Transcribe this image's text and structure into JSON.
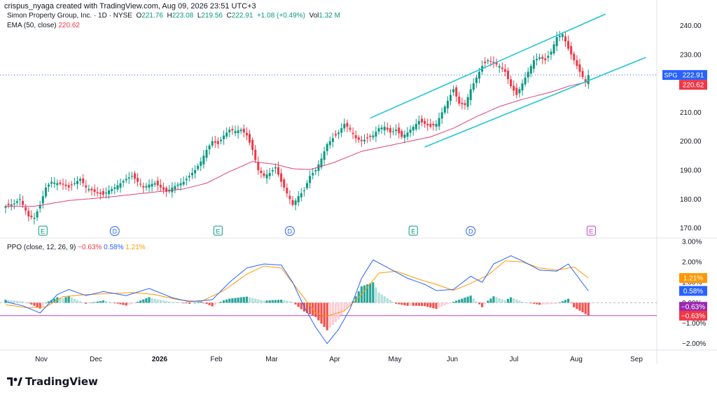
{
  "credit": "crispus_nyaga created with TradingView.com, Aug 09, 2026 23:51 UTC+3",
  "brand": "TradingView",
  "header": {
    "symbol_line": "Simon Property Group, Inc. · 1D · NYSE",
    "o_label": "O",
    "o_val": "221.76",
    "h_label": "H",
    "h_val": "223.08",
    "l_label": "L",
    "l_val": "219.56",
    "c_label": "C",
    "c_val": "222.91",
    "change": "+1.08 (+0.49%)",
    "vol_label": "Vol",
    "vol_val": "1.32 M",
    "ema_label": "EMA (50, close)",
    "ema_val": "220.62",
    "ppo_label": "PPO (close, 12, 26, 9)",
    "ppo_hist": "−0.63%",
    "ppo_line": "0.58%",
    "ppo_signal": "1.21%"
  },
  "colors": {
    "up": "#089981",
    "down": "#f23645",
    "ema": "#e0407a",
    "channel": "#1fc7d4",
    "ppo": "#2962ff",
    "signal": "#ff9800",
    "hist_up": "#26a69a",
    "hist_up_light": "#b2dfdb",
    "hist_down": "#ef5350",
    "hist_down_light": "#ffcdd2",
    "level": "#c040c0"
  },
  "chart_data": [
    {
      "type": "candlestick",
      "y_axis": {
        "ticks": [
          170,
          180,
          190,
          200,
          210,
          220,
          230,
          240
        ],
        "tick_labels": [
          "170.00",
          "180.00",
          "190.00",
          "200.00",
          "210.00",
          "220.00",
          "230.00",
          "240.00"
        ],
        "ylim": [
          167,
          244
        ]
      },
      "x_axis": {
        "labels": [
          "Nov",
          "Dec",
          "2026",
          "Feb",
          "Mar",
          "Apr",
          "May",
          "Jun",
          "Jul",
          "Aug",
          "Sep"
        ]
      },
      "close_path": [
        [
          0,
          177.5
        ],
        [
          3,
          178.5
        ],
        [
          5,
          180
        ],
        [
          8,
          174
        ],
        [
          10,
          173.5
        ],
        [
          12,
          178
        ],
        [
          14,
          184
        ],
        [
          16,
          186
        ],
        [
          18,
          185.5
        ],
        [
          20,
          185
        ],
        [
          22,
          184
        ],
        [
          24,
          185.5
        ],
        [
          26,
          187
        ],
        [
          28,
          184
        ],
        [
          30,
          183
        ],
        [
          32,
          182
        ],
        [
          34,
          181.5
        ],
        [
          36,
          183
        ],
        [
          38,
          184
        ],
        [
          40,
          185.5
        ],
        [
          42,
          187
        ],
        [
          44,
          188
        ],
        [
          46,
          186
        ],
        [
          48,
          184
        ],
        [
          50,
          185
        ],
        [
          52,
          185.5
        ],
        [
          54,
          184
        ],
        [
          56,
          182.5
        ],
        [
          58,
          184
        ],
        [
          60,
          185
        ],
        [
          62,
          186
        ],
        [
          64,
          188
        ],
        [
          66,
          190
        ],
        [
          68,
          193
        ],
        [
          70,
          197
        ],
        [
          72,
          200
        ],
        [
          74,
          199
        ],
        [
          76,
          202
        ],
        [
          78,
          204
        ],
        [
          80,
          203.5
        ],
        [
          82,
          204
        ],
        [
          84,
          202
        ],
        [
          86,
          197
        ],
        [
          88,
          190
        ],
        [
          90,
          188
        ],
        [
          92,
          189
        ],
        [
          94,
          191
        ],
        [
          96,
          186
        ],
        [
          98,
          182
        ],
        [
          100,
          178
        ],
        [
          102,
          181
        ],
        [
          104,
          183
        ],
        [
          106,
          188
        ],
        [
          108,
          190
        ],
        [
          110,
          194
        ],
        [
          112,
          199
        ],
        [
          114,
          201
        ],
        [
          116,
          203
        ],
        [
          118,
          206
        ],
        [
          120,
          204
        ],
        [
          122,
          201
        ],
        [
          124,
          200
        ],
        [
          126,
          201
        ],
        [
          128,
          202
        ],
        [
          130,
          204.5
        ],
        [
          132,
          205
        ],
        [
          134,
          203
        ],
        [
          136,
          204
        ],
        [
          138,
          201.5
        ],
        [
          140,
          203
        ],
        [
          142,
          205
        ],
        [
          144,
          207
        ],
        [
          146,
          206
        ],
        [
          148,
          205
        ],
        [
          150,
          206
        ],
        [
          152,
          210
        ],
        [
          154,
          214
        ],
        [
          156,
          218
        ],
        [
          158,
          213
        ],
        [
          160,
          212.5
        ],
        [
          162,
          218
        ],
        [
          164,
          222
        ],
        [
          166,
          226
        ],
        [
          168,
          228
        ],
        [
          170,
          227
        ],
        [
          172,
          226
        ],
        [
          174,
          224
        ],
        [
          176,
          219
        ],
        [
          178,
          216
        ],
        [
          180,
          220
        ],
        [
          182,
          224
        ],
        [
          184,
          228
        ],
        [
          186,
          229
        ],
        [
          188,
          228
        ],
        [
          190,
          231
        ],
        [
          192,
          236
        ],
        [
          194,
          237
        ],
        [
          196,
          232
        ],
        [
          198,
          228
        ],
        [
          200,
          224
        ],
        [
          202,
          220.5
        ],
        [
          203,
          222.91
        ]
      ],
      "ema_path": [
        [
          0,
          177.5
        ],
        [
          10,
          177.5
        ],
        [
          22,
          179.5
        ],
        [
          34,
          180.5
        ],
        [
          48,
          182
        ],
        [
          62,
          183.5
        ],
        [
          70,
          185.5
        ],
        [
          78,
          189.5
        ],
        [
          86,
          193
        ],
        [
          94,
          192
        ],
        [
          100,
          190.5
        ],
        [
          106,
          190.2
        ],
        [
          114,
          192.5
        ],
        [
          124,
          196.5
        ],
        [
          136,
          199
        ],
        [
          148,
          201.5
        ],
        [
          156,
          204.5
        ],
        [
          164,
          208.5
        ],
        [
          172,
          212
        ],
        [
          180,
          214.5
        ],
        [
          190,
          217
        ],
        [
          196,
          219
        ],
        [
          203,
          220.62
        ]
      ],
      "channel_upper": [
        [
          127,
          208
        ],
        [
          209,
          244
        ]
      ],
      "channel_lower": [
        [
          146,
          198
        ],
        [
          223,
          229
        ]
      ],
      "markers": [
        {
          "idx": 13,
          "label": "E"
        },
        {
          "idx": 38,
          "label": "D"
        },
        {
          "idx": 74,
          "label": "E"
        },
        {
          "idx": 99,
          "label": "D"
        },
        {
          "idx": 142,
          "label": "E"
        },
        {
          "idx": 162,
          "label": "D"
        },
        {
          "idx": 204,
          "label": "E"
        }
      ],
      "price_tags": {
        "symbol": "SPG",
        "last": "222.91",
        "ema": "220.62"
      }
    },
    {
      "type": "line",
      "title": "PPO (close, 12, 26, 9)",
      "y_axis": {
        "ticks": [
          -2,
          -1,
          0,
          1,
          2,
          3
        ],
        "tick_labels": [
          "−2.00%",
          "−1.00%",
          "0.00%",
          "1.00%",
          "2.00%",
          "3.00%"
        ],
        "ylim": [
          -2.25,
          3.1
        ]
      },
      "level_line": -0.63,
      "ppo_path": [
        [
          0,
          0.05
        ],
        [
          6,
          -0.15
        ],
        [
          12,
          -0.5
        ],
        [
          18,
          0.4
        ],
        [
          22,
          0.65
        ],
        [
          28,
          0.35
        ],
        [
          34,
          0.55
        ],
        [
          42,
          0.35
        ],
        [
          50,
          0.7
        ],
        [
          58,
          0.25
        ],
        [
          64,
          0.05
        ],
        [
          72,
          0.15
        ],
        [
          78,
          1.0
        ],
        [
          84,
          1.7
        ],
        [
          90,
          1.9
        ],
        [
          96,
          1.85
        ],
        [
          100,
          1.0
        ],
        [
          104,
          -0.2
        ],
        [
          108,
          -1.2
        ],
        [
          112,
          -2.0
        ],
        [
          116,
          -1.3
        ],
        [
          120,
          -0.3
        ],
        [
          124,
          1.2
        ],
        [
          128,
          2.1
        ],
        [
          132,
          1.8
        ],
        [
          136,
          1.5
        ],
        [
          140,
          1.2
        ],
        [
          146,
          0.9
        ],
        [
          150,
          0.6
        ],
        [
          156,
          0.65
        ],
        [
          162,
          1.3
        ],
        [
          166,
          1.0
        ],
        [
          170,
          1.9
        ],
        [
          176,
          2.3
        ],
        [
          180,
          2.05
        ],
        [
          186,
          1.6
        ],
        [
          192,
          1.55
        ],
        [
          196,
          1.9
        ],
        [
          203,
          0.58
        ]
      ],
      "signal_path": [
        [
          0,
          -0.1
        ],
        [
          8,
          -0.25
        ],
        [
          14,
          -0.2
        ],
        [
          20,
          0.3
        ],
        [
          28,
          0.4
        ],
        [
          36,
          0.45
        ],
        [
          44,
          0.5
        ],
        [
          52,
          0.4
        ],
        [
          60,
          0.15
        ],
        [
          68,
          0.05
        ],
        [
          76,
          0.6
        ],
        [
          84,
          1.4
        ],
        [
          90,
          1.8
        ],
        [
          96,
          1.7
        ],
        [
          102,
          0.6
        ],
        [
          108,
          -0.5
        ],
        [
          112,
          -0.65
        ],
        [
          118,
          -0.4
        ],
        [
          124,
          0.4
        ],
        [
          130,
          1.45
        ],
        [
          136,
          1.55
        ],
        [
          144,
          1.15
        ],
        [
          150,
          0.9
        ],
        [
          156,
          0.6
        ],
        [
          162,
          0.95
        ],
        [
          168,
          1.35
        ],
        [
          174,
          2.05
        ],
        [
          180,
          2.0
        ],
        [
          186,
          1.7
        ],
        [
          192,
          1.6
        ],
        [
          198,
          1.75
        ],
        [
          203,
          1.21
        ]
      ]
    }
  ]
}
